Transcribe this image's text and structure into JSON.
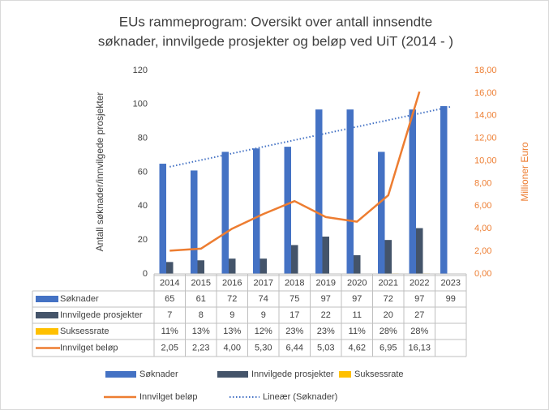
{
  "chart_data": {
    "type": "bar",
    "title": [
      "EUs rammeprogram: Oversikt over antall innsendte",
      "søknader, innvilgede prosjekter og beløp ved UiT (2014 - )"
    ],
    "ylabel": "Antall søknader/innvilgede prosjekter",
    "y2label": "Millioner Euro",
    "categories": [
      "2014",
      "2015",
      "2016",
      "2017",
      "2018",
      "2019",
      "2020",
      "2021",
      "2022",
      "2023"
    ],
    "series": [
      {
        "name": "Søknader",
        "type": "bar",
        "color": "#4472c4",
        "values": [
          65,
          61,
          72,
          74,
          75,
          97,
          97,
          72,
          97,
          99
        ]
      },
      {
        "name": "Innvilgede prosjekter",
        "type": "bar",
        "color": "#44546a",
        "values": [
          7,
          8,
          9,
          9,
          17,
          22,
          11,
          20,
          27,
          null
        ]
      },
      {
        "name": "Suksessrate",
        "type": "bar",
        "color": "#ffc000",
        "values": [
          0.11,
          0.13,
          0.13,
          0.12,
          0.23,
          0.23,
          0.11,
          0.28,
          0.28,
          null
        ],
        "value_labels": [
          "11%",
          "13%",
          "13%",
          "12%",
          "23%",
          "23%",
          "11%",
          "28%",
          "28%",
          null
        ]
      },
      {
        "name": "Innvilget beløp",
        "type": "line",
        "axis": "y2",
        "color": "#ed7d31",
        "values": [
          2.05,
          2.23,
          4.0,
          5.3,
          6.44,
          5.03,
          4.62,
          6.95,
          16.13,
          null
        ],
        "value_labels": [
          "2,05",
          "2,23",
          "4,00",
          "5,30",
          "6,44",
          "5,03",
          "4,62",
          "6,95",
          "16,13",
          null
        ]
      }
    ],
    "trendline": {
      "name": "Lineær (Søknader)",
      "color": "#4472c4"
    },
    "ylim": [
      0,
      120
    ],
    "yticks": [
      0,
      20,
      40,
      60,
      80,
      100,
      120
    ],
    "y2lim": [
      0,
      18
    ],
    "y2ticks": [
      {
        "value": 0,
        "label": "0,00"
      },
      {
        "value": 2,
        "label": "2,00"
      },
      {
        "value": 4,
        "label": "4,00"
      },
      {
        "value": 6,
        "label": "6,00"
      },
      {
        "value": 8,
        "label": "8,00"
      },
      {
        "value": 10,
        "label": "10,00"
      },
      {
        "value": 12,
        "label": "12,00"
      },
      {
        "value": 14,
        "label": "14,00"
      },
      {
        "value": 16,
        "label": "16,00"
      },
      {
        "value": 18,
        "label": "18,00"
      }
    ],
    "grid": false
  }
}
